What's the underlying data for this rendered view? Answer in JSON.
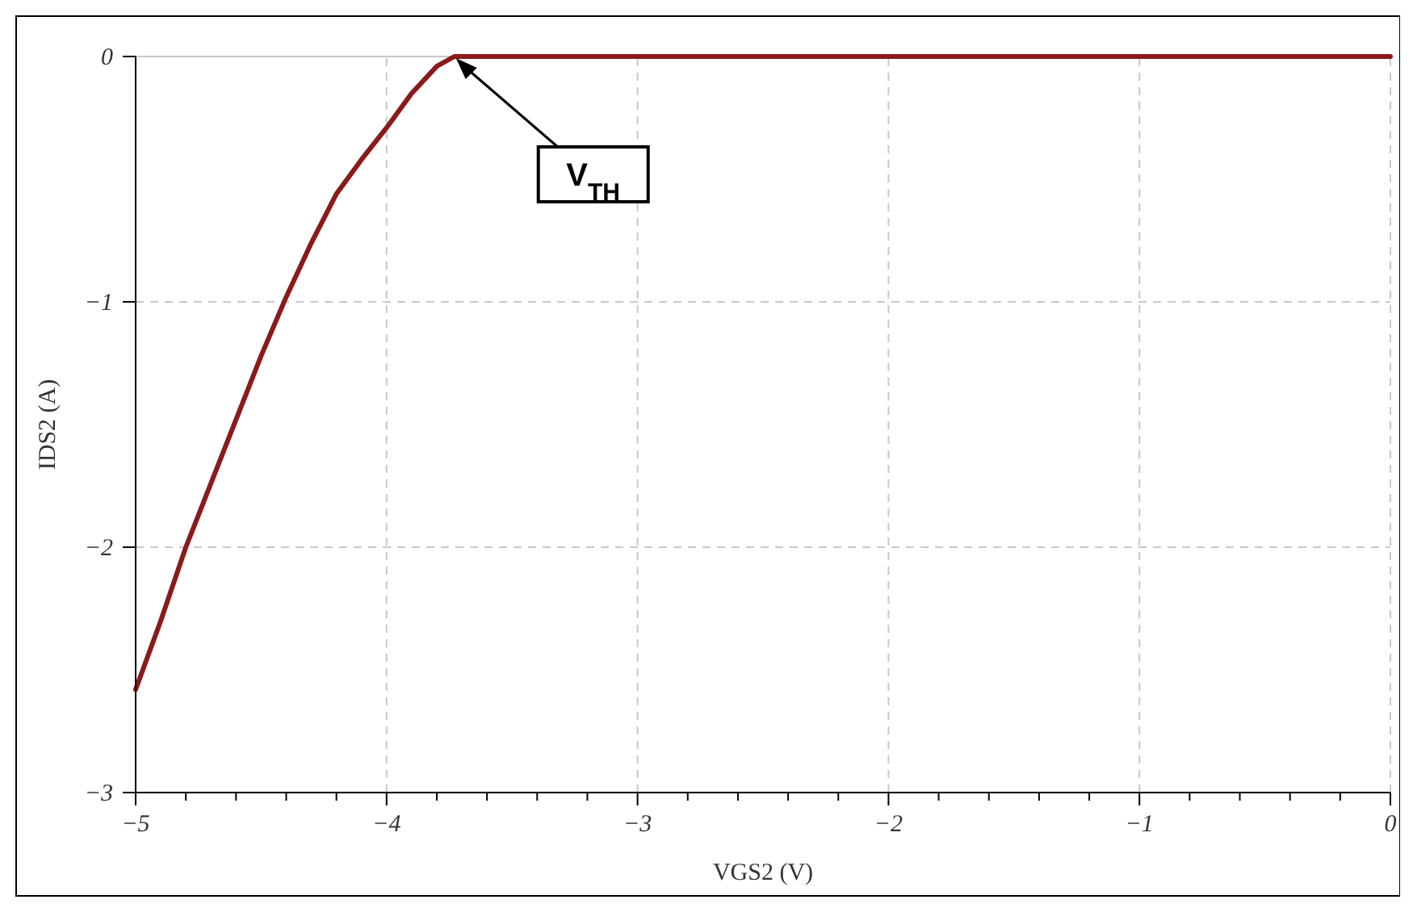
{
  "chart_data": {
    "type": "line",
    "xlabel": "VGS2 (V)",
    "ylabel": "IDS2 (A)",
    "xlim": [
      -5,
      0
    ],
    "ylim": [
      -3,
      0
    ],
    "xticks": [
      -5,
      {
        "value": -4.8,
        "label": null
      },
      {
        "value": -4.6,
        "label": null
      },
      {
        "value": -4.4,
        "label": null
      },
      {
        "value": -4.2,
        "label": null
      },
      -4,
      {
        "value": -3.8,
        "label": null
      },
      {
        "value": -3.6,
        "label": null
      },
      {
        "value": -3.4,
        "label": null
      },
      {
        "value": -3.2,
        "label": null
      },
      -3,
      {
        "value": -2.8,
        "label": null
      },
      {
        "value": -2.6,
        "label": null
      },
      {
        "value": -2.4,
        "label": null
      },
      {
        "value": -2.2,
        "label": null
      },
      -2,
      {
        "value": -1.8,
        "label": null
      },
      {
        "value": -1.6,
        "label": null
      },
      {
        "value": -1.4,
        "label": null
      },
      {
        "value": -1.2,
        "label": null
      },
      -1,
      {
        "value": -0.8,
        "label": null
      },
      {
        "value": -0.6,
        "label": null
      },
      {
        "value": -0.4,
        "label": null
      },
      {
        "value": -0.2,
        "label": null
      },
      0
    ],
    "yticks": [
      -3,
      -2,
      -1,
      0
    ],
    "grid": true,
    "line_style": "solid",
    "series": [
      {
        "color": "#8b1a1a",
        "x": [
          -5,
          -4.9,
          -4.8,
          -4.7,
          -4.6,
          -4.5,
          -4.4,
          -4.3,
          -4.2,
          -4.1,
          -4,
          -3.9,
          -3.8,
          -3.73,
          -3.5,
          -3,
          -2,
          -1,
          0
        ],
        "values": [
          -2.58,
          -2.3,
          -2.0,
          -1.74,
          -1.48,
          -1.22,
          -0.98,
          -0.76,
          -0.56,
          -0.42,
          -0.29,
          -0.15,
          -0.04,
          0,
          0,
          0,
          0,
          0,
          0
        ]
      }
    ],
    "annotations": [
      {
        "text": "V$_{TH}$",
        "x": -3.73,
        "y": 0
      }
    ]
  }
}
